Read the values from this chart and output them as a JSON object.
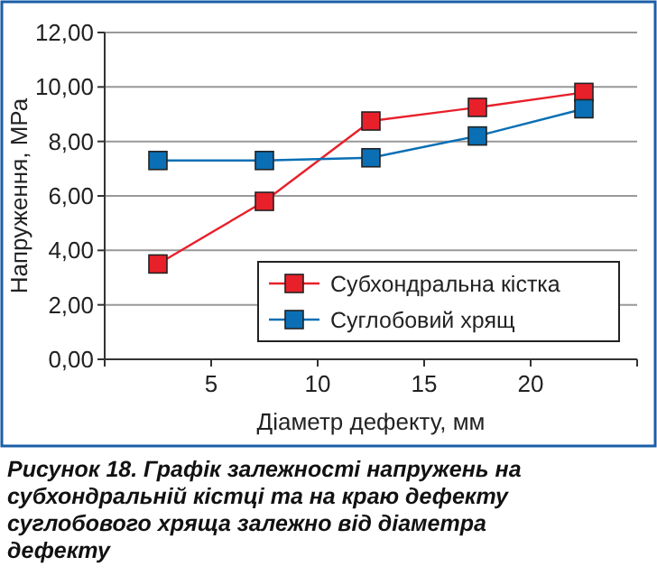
{
  "chart_data": {
    "type": "line",
    "xlabel": "Діаметр дефекту, мм",
    "ylabel": "Напруження, МРа",
    "x": [
      2.5,
      7.5,
      12.5,
      17.5,
      22.5
    ],
    "series": [
      {
        "name": "Субхондральна кістка",
        "color": "#e8202a",
        "values": [
          3.5,
          5.8,
          8.75,
          9.25,
          9.8
        ]
      },
      {
        "name": "Суглобовий хрящ",
        "color": "#0a6fb5",
        "values": [
          7.3,
          7.3,
          7.4,
          8.2,
          9.2
        ]
      }
    ],
    "xlim": [
      0,
      25
    ],
    "xticks": [
      {
        "value": 0,
        "label": null
      },
      5,
      10,
      15,
      20,
      {
        "value": 25,
        "label": null
      }
    ],
    "ylim": [
      0,
      12
    ],
    "yticks": [
      {
        "value": 0,
        "label": "0,00"
      },
      {
        "value": 2,
        "label": "2,00"
      },
      {
        "value": 4,
        "label": "4,00"
      },
      {
        "value": 6,
        "label": "6,00"
      },
      {
        "value": 8,
        "label": "8,00"
      },
      {
        "value": 10,
        "label": "10,00"
      },
      {
        "value": 12,
        "label": "12,00"
      }
    ],
    "grid": "y",
    "legend": "bottom right",
    "marker": "square",
    "line_style": "solid",
    "annotations": [
      "Рисунок 18. Графік залежності напружень на субхондральній кістці та на краю дефекту суглобового хряща залежно від діаметра дефекту"
    ]
  }
}
